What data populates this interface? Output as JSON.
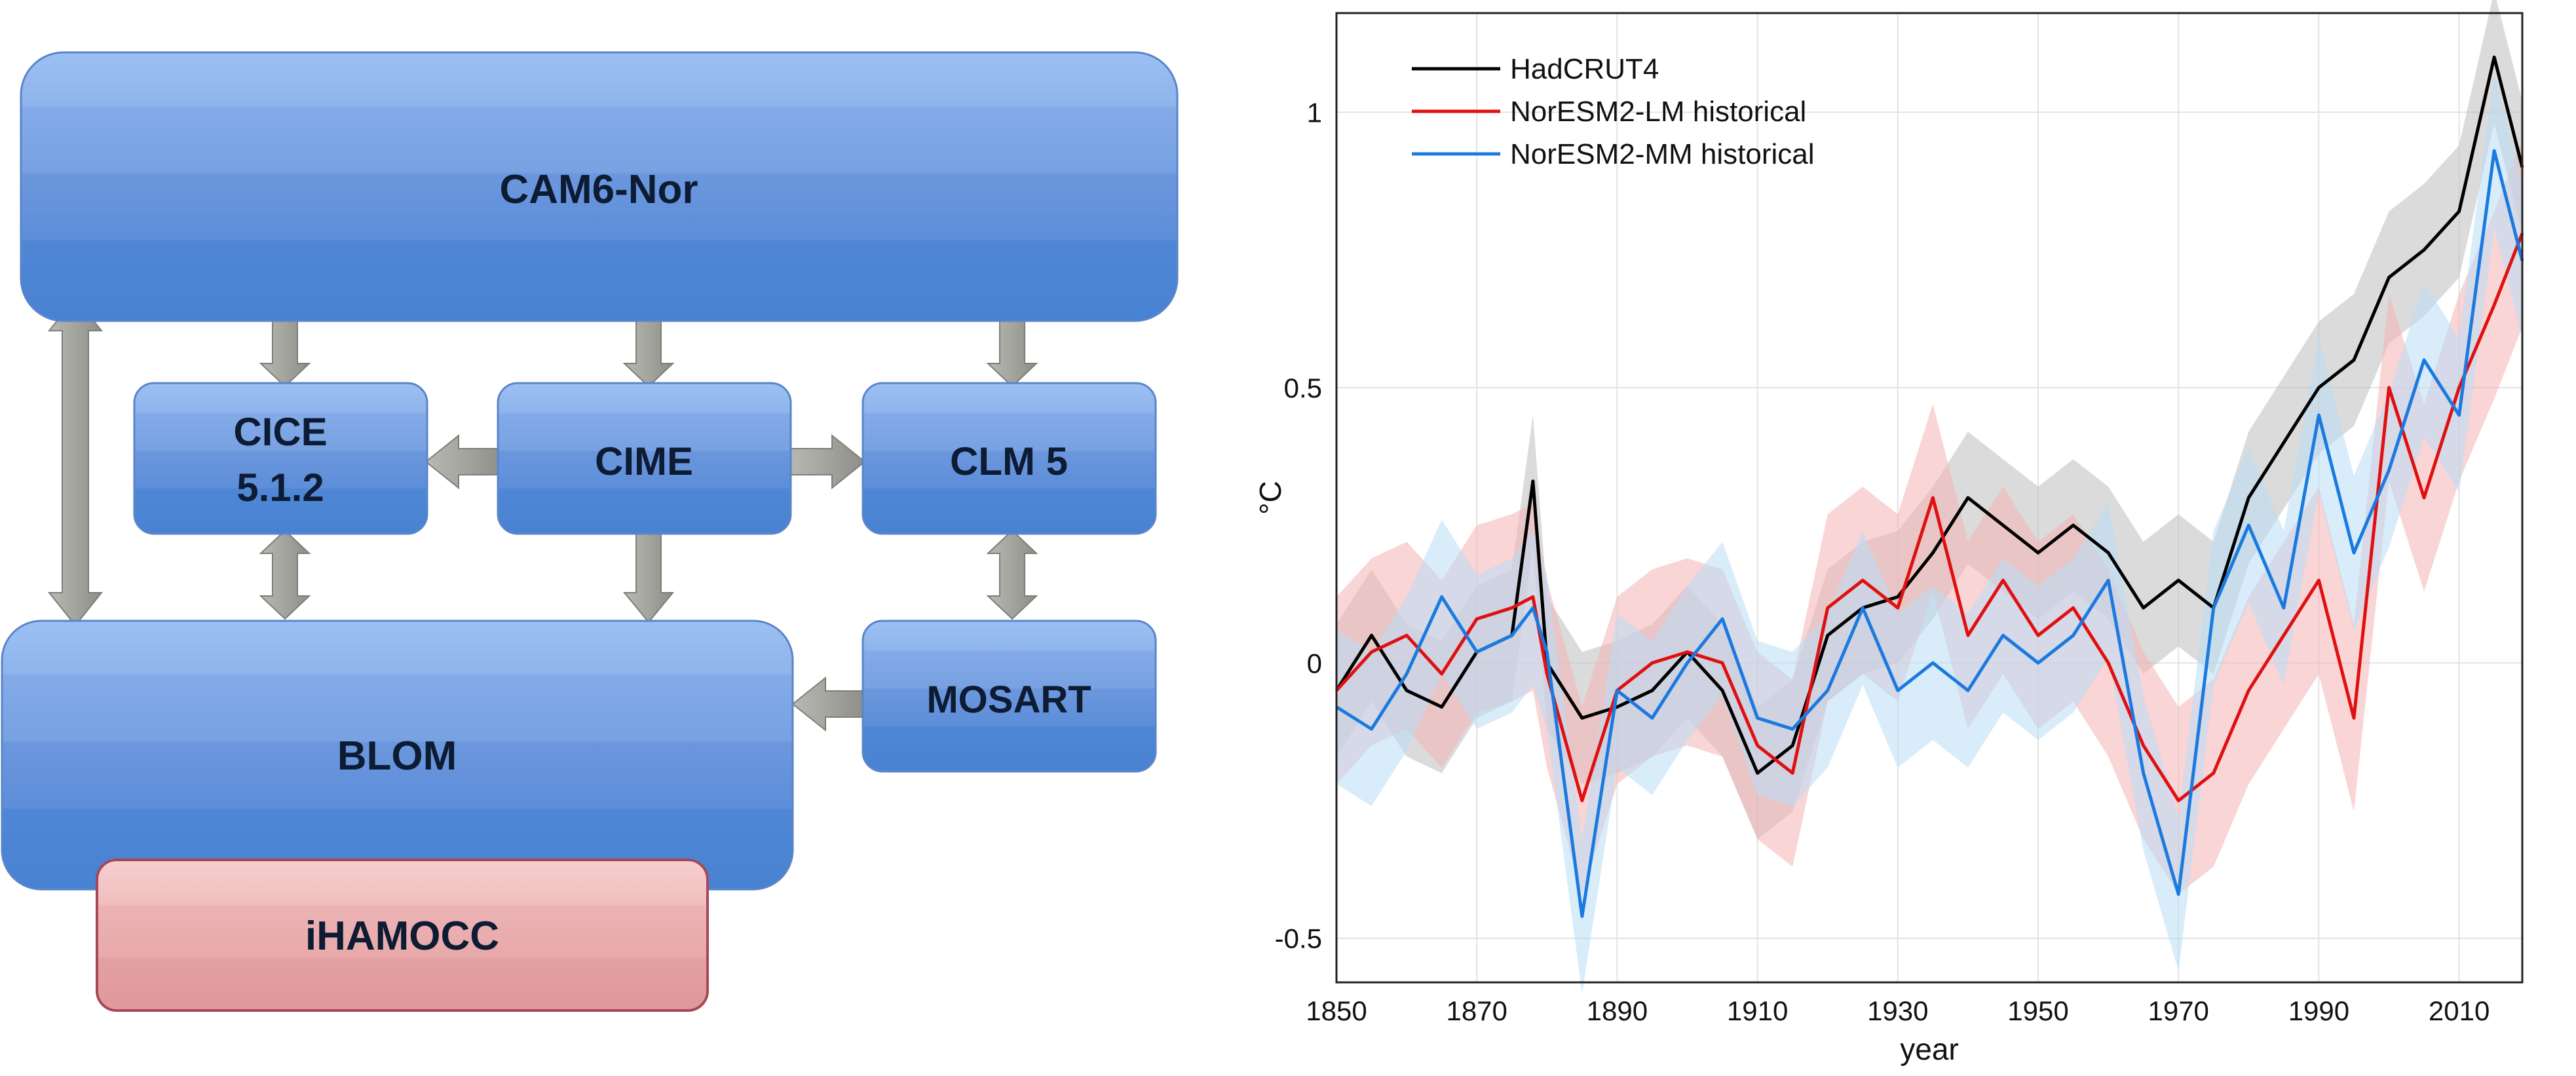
{
  "diagram": {
    "boxes": {
      "cam": "CAM6-Nor",
      "cice_line1": "CICE",
      "cice_line2": "5.1.2",
      "cime": "CIME",
      "clm": "CLM 5",
      "mosart": "MOSART",
      "blom": "BLOM",
      "ihamocc": "iHAMOCC"
    },
    "colors": {
      "box_top": "#94b8ef",
      "box_bottom": "#4a86d4",
      "box_border": "#4f7fc8",
      "bgc_top": "#f3c3c3",
      "bgc_bottom": "#e39a9c",
      "bgc_border": "#a14a5a",
      "arrow": "#a9a9a3"
    }
  },
  "chart_data": {
    "type": "line",
    "xlabel": "year",
    "ylabel": "°C",
    "xlim": [
      1850,
      2019
    ],
    "ylim": [
      -0.58,
      1.18
    ],
    "xticks": [
      "1850",
      "1870",
      "1890",
      "1910",
      "1930",
      "1950",
      "1970",
      "1990",
      "2010"
    ],
    "yticks": [
      "-0.5",
      "0",
      "0.5",
      "1"
    ],
    "grid": true,
    "legend_position": "top-left",
    "x": [
      1850,
      1855,
      1860,
      1865,
      1870,
      1875,
      1878,
      1880,
      1885,
      1890,
      1895,
      1900,
      1905,
      1910,
      1915,
      1920,
      1925,
      1930,
      1935,
      1940,
      1945,
      1950,
      1955,
      1960,
      1965,
      1970,
      1975,
      1980,
      1985,
      1990,
      1995,
      2000,
      2005,
      2010,
      2015,
      2019
    ],
    "series": [
      {
        "name": "HadCRUT4",
        "color": "#000000",
        "band_color": "#bdbdbd",
        "values": [
          -0.05,
          0.05,
          -0.05,
          -0.08,
          0.02,
          0.05,
          0.33,
          0.0,
          -0.1,
          -0.08,
          -0.05,
          0.02,
          -0.05,
          -0.2,
          -0.15,
          0.05,
          0.1,
          0.12,
          0.2,
          0.3,
          0.25,
          0.2,
          0.25,
          0.2,
          0.1,
          0.15,
          0.1,
          0.3,
          0.4,
          0.5,
          0.55,
          0.7,
          0.75,
          0.82,
          1.1,
          0.9
        ]
      },
      {
        "name": "NorESM2-LM historical",
        "color": "#e01010",
        "band_color": "#f4b3b3",
        "values": [
          -0.05,
          0.02,
          0.05,
          -0.02,
          0.08,
          0.1,
          0.12,
          -0.02,
          -0.25,
          -0.05,
          0.0,
          0.02,
          0.0,
          -0.15,
          -0.2,
          0.1,
          0.15,
          0.1,
          0.3,
          0.05,
          0.15,
          0.05,
          0.1,
          0.0,
          -0.15,
          -0.25,
          -0.2,
          -0.05,
          0.05,
          0.15,
          -0.1,
          0.5,
          0.3,
          0.5,
          0.65,
          0.78
        ]
      },
      {
        "name": "NorESM2-MM historical",
        "color": "#1a7ae0",
        "band_color": "#b9dcf5",
        "values": [
          -0.08,
          -0.12,
          -0.02,
          0.12,
          0.02,
          0.05,
          0.1,
          0.02,
          -0.46,
          -0.05,
          -0.1,
          0.0,
          0.08,
          -0.1,
          -0.12,
          -0.05,
          0.1,
          -0.05,
          0.0,
          -0.05,
          0.05,
          0.0,
          0.05,
          0.15,
          -0.2,
          -0.42,
          0.1,
          0.25,
          0.1,
          0.45,
          0.2,
          0.35,
          0.55,
          0.45,
          0.93,
          0.73
        ]
      }
    ]
  }
}
